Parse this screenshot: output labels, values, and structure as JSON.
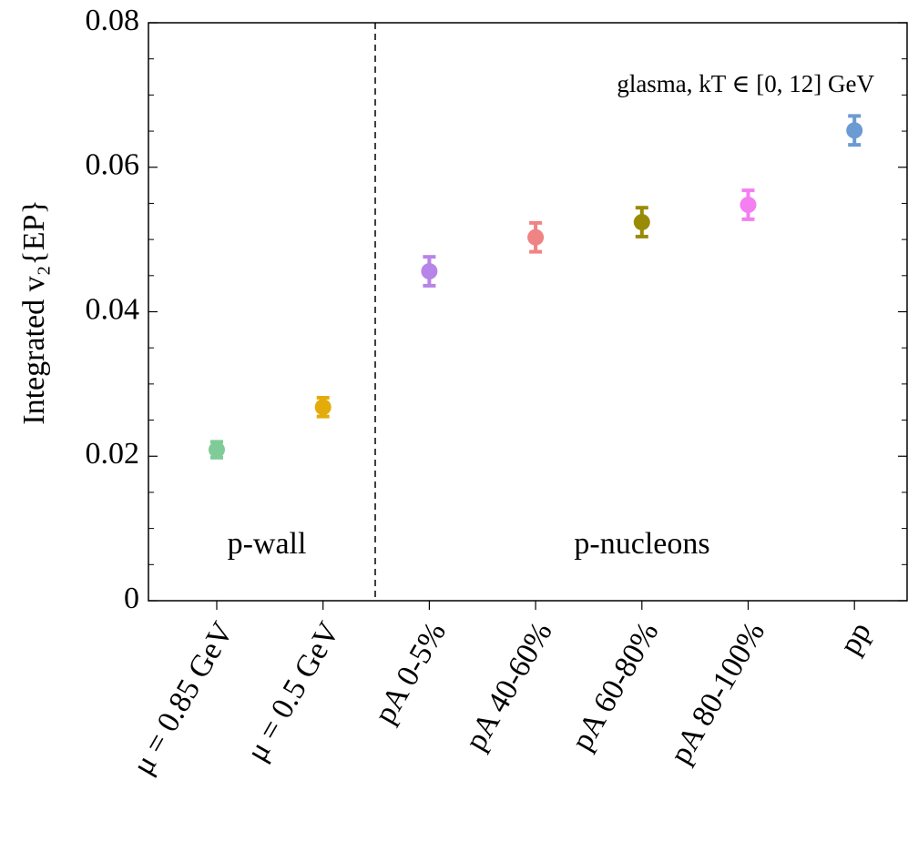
{
  "chart_data": {
    "type": "errorbar",
    "y_label": "Integrated v₂{EP}",
    "annotations": [
      "glasma, kT ∈ [0, 12] GeV",
      "p-wall",
      "p-nucleons"
    ],
    "categories": [
      "μ = 0.85 GeV",
      "μ = 0.5 GeV",
      "pA 0-5%",
      "pA 40-60%",
      "pA 60-80%",
      "pA 80-100%",
      "pp"
    ],
    "values": [
      0.0209,
      0.0268,
      0.0456,
      0.0503,
      0.0524,
      0.0548,
      0.0651
    ],
    "errors": [
      0.0011,
      0.0013,
      0.002,
      0.002,
      0.002,
      0.002,
      0.002
    ],
    "colors": [
      "#7fcc98",
      "#e3ac0b",
      "#b784e8",
      "#f08383",
      "#9a8b07",
      "#f47ff0",
      "#6b9bd2"
    ],
    "ylim": [
      0,
      0.08
    ],
    "yticks": [
      0,
      0.02,
      0.04,
      0.06,
      0.08
    ],
    "minor_yticks": [
      0.005,
      0.01,
      0.015,
      0.025,
      0.03,
      0.035,
      0.045,
      0.05,
      0.055,
      0.065,
      0.07,
      0.075
    ]
  }
}
